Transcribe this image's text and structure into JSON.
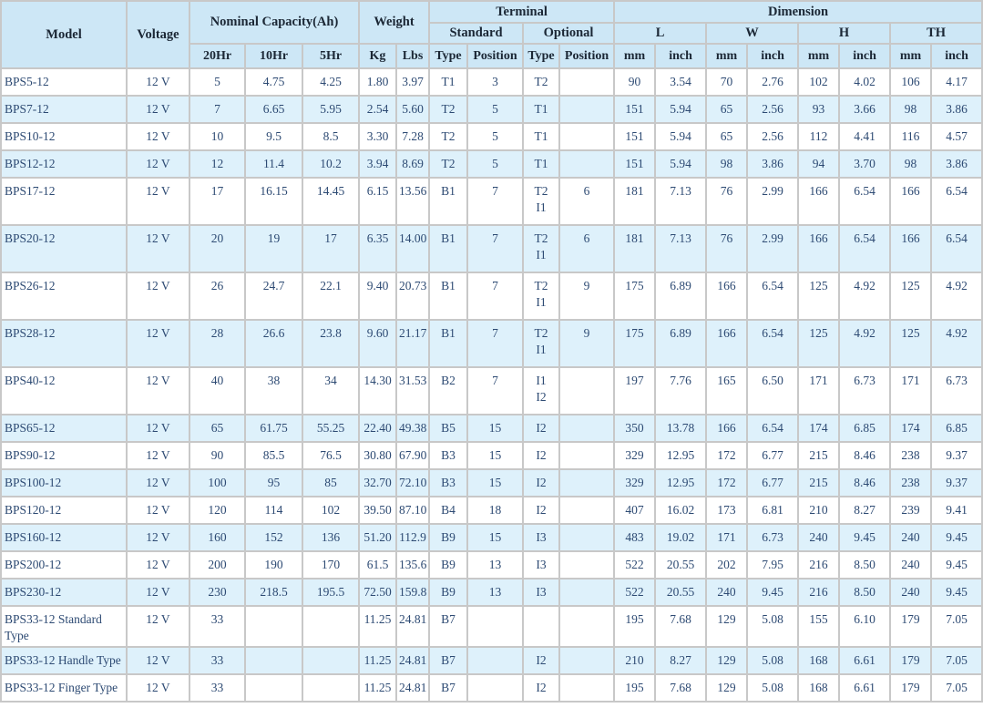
{
  "colors": {
    "header_bg": "#cde7f6",
    "stripe_bg": "#def1fb",
    "border": "#c8c8c8",
    "body_text": "#2d4a73",
    "header_text": "#1b2735"
  },
  "header": {
    "model": "Model",
    "voltage": "Voltage",
    "nominal_capacity": {
      "label": "Nominal Capacity(Ah)",
      "cols": [
        "20Hr",
        "10Hr",
        "5Hr"
      ]
    },
    "weight": {
      "label": "Weight",
      "cols": [
        "Kg",
        "Lbs"
      ]
    },
    "terminal": {
      "label": "Terminal",
      "standard": {
        "label": "Standard",
        "cols": [
          "Type",
          "Position"
        ]
      },
      "optional": {
        "label": "Optional",
        "cols": [
          "Type",
          "Position"
        ]
      }
    },
    "dimension": {
      "label": "Dimension",
      "groups": [
        {
          "label": "L"
        },
        {
          "label": "W"
        },
        {
          "label": "H"
        },
        {
          "label": "TH"
        }
      ],
      "unit_cols": [
        "mm",
        "inch"
      ]
    }
  },
  "rows": [
    {
      "model": "BPS5-12",
      "voltage": "12 V",
      "cap_20hr": "5",
      "cap_10hr": "4.75",
      "cap_5hr": "4.25",
      "kg": "1.80",
      "lbs": "3.97",
      "std_type": "T1",
      "std_position": "3",
      "opt_type": "T2",
      "opt_position": "",
      "l_mm": "90",
      "l_inch": "3.54",
      "w_mm": "70",
      "w_inch": "2.76",
      "h_mm": "102",
      "h_inch": "4.02",
      "th_mm": "106",
      "th_inch": "4.17"
    },
    {
      "model": "BPS7-12",
      "voltage": "12 V",
      "cap_20hr": "7",
      "cap_10hr": "6.65",
      "cap_5hr": "5.95",
      "kg": "2.54",
      "lbs": "5.60",
      "std_type": "T2",
      "std_position": "5",
      "opt_type": "T1",
      "opt_position": "",
      "l_mm": "151",
      "l_inch": "5.94",
      "w_mm": "65",
      "w_inch": "2.56",
      "h_mm": "93",
      "h_inch": "3.66",
      "th_mm": "98",
      "th_inch": "3.86"
    },
    {
      "model": "BPS10-12",
      "voltage": "12 V",
      "cap_20hr": "10",
      "cap_10hr": "9.5",
      "cap_5hr": "8.5",
      "kg": "3.30",
      "lbs": "7.28",
      "std_type": "T2",
      "std_position": "5",
      "opt_type": "T1",
      "opt_position": "",
      "l_mm": "151",
      "l_inch": "5.94",
      "w_mm": "65",
      "w_inch": "2.56",
      "h_mm": "112",
      "h_inch": "4.41",
      "th_mm": "116",
      "th_inch": "4.57"
    },
    {
      "model": "BPS12-12",
      "voltage": "12 V",
      "cap_20hr": "12",
      "cap_10hr": "11.4",
      "cap_5hr": "10.2",
      "kg": "3.94",
      "lbs": "8.69",
      "std_type": "T2",
      "std_position": "5",
      "opt_type": "T1",
      "opt_position": "",
      "l_mm": "151",
      "l_inch": "5.94",
      "w_mm": "98",
      "w_inch": "3.86",
      "h_mm": "94",
      "h_inch": "3.70",
      "th_mm": "98",
      "th_inch": "3.86"
    },
    {
      "model": "BPS17-12",
      "voltage": "12 V",
      "cap_20hr": "17",
      "cap_10hr": "16.15",
      "cap_5hr": "14.45",
      "kg": "6.15",
      "lbs": "13.56",
      "std_type": "B1",
      "std_position": "7",
      "opt_type": "T2\nI1",
      "opt_position": "6",
      "l_mm": "181",
      "l_inch": "7.13",
      "w_mm": "76",
      "w_inch": "2.99",
      "h_mm": "166",
      "h_inch": "6.54",
      "th_mm": "166",
      "th_inch": "6.54"
    },
    {
      "model": "BPS20-12",
      "voltage": "12 V",
      "cap_20hr": "20",
      "cap_10hr": "19",
      "cap_5hr": "17",
      "kg": "6.35",
      "lbs": "14.00",
      "std_type": "B1",
      "std_position": "7",
      "opt_type": "T2\nI1",
      "opt_position": "6",
      "l_mm": "181",
      "l_inch": "7.13",
      "w_mm": "76",
      "w_inch": "2.99",
      "h_mm": "166",
      "h_inch": "6.54",
      "th_mm": "166",
      "th_inch": "6.54"
    },
    {
      "model": "BPS26-12",
      "voltage": "12 V",
      "cap_20hr": "26",
      "cap_10hr": "24.7",
      "cap_5hr": "22.1",
      "kg": "9.40",
      "lbs": "20.73",
      "std_type": "B1",
      "std_position": "7",
      "opt_type": "T2\nI1",
      "opt_position": "9",
      "l_mm": "175",
      "l_inch": "6.89",
      "w_mm": "166",
      "w_inch": "6.54",
      "h_mm": "125",
      "h_inch": "4.92",
      "th_mm": "125",
      "th_inch": "4.92"
    },
    {
      "model": "BPS28-12",
      "voltage": "12 V",
      "cap_20hr": "28",
      "cap_10hr": "26.6",
      "cap_5hr": "23.8",
      "kg": "9.60",
      "lbs": "21.17",
      "std_type": "B1",
      "std_position": "7",
      "opt_type": "T2\nI1",
      "opt_position": "9",
      "l_mm": "175",
      "l_inch": "6.89",
      "w_mm": "166",
      "w_inch": "6.54",
      "h_mm": "125",
      "h_inch": "4.92",
      "th_mm": "125",
      "th_inch": "4.92"
    },
    {
      "model": "BPS40-12",
      "voltage": "12 V",
      "cap_20hr": "40",
      "cap_10hr": "38",
      "cap_5hr": "34",
      "kg": "14.30",
      "lbs": "31.53",
      "std_type": "B2",
      "std_position": "7",
      "opt_type": "I1\nI2",
      "opt_position": "",
      "l_mm": "197",
      "l_inch": "7.76",
      "w_mm": "165",
      "w_inch": "6.50",
      "h_mm": "171",
      "h_inch": "6.73",
      "th_mm": "171",
      "th_inch": "6.73"
    },
    {
      "model": "BPS65-12",
      "voltage": "12 V",
      "cap_20hr": "65",
      "cap_10hr": "61.75",
      "cap_5hr": "55.25",
      "kg": "22.40",
      "lbs": "49.38",
      "std_type": "B5",
      "std_position": "15",
      "opt_type": "I2",
      "opt_position": "",
      "l_mm": "350",
      "l_inch": "13.78",
      "w_mm": "166",
      "w_inch": "6.54",
      "h_mm": "174",
      "h_inch": "6.85",
      "th_mm": "174",
      "th_inch": "6.85"
    },
    {
      "model": "BPS90-12",
      "voltage": "12 V",
      "cap_20hr": "90",
      "cap_10hr": "85.5",
      "cap_5hr": "76.5",
      "kg": "30.80",
      "lbs": "67.90",
      "std_type": "B3",
      "std_position": "15",
      "opt_type": "I2",
      "opt_position": "",
      "l_mm": "329",
      "l_inch": "12.95",
      "w_mm": "172",
      "w_inch": "6.77",
      "h_mm": "215",
      "h_inch": "8.46",
      "th_mm": "238",
      "th_inch": "9.37"
    },
    {
      "model": "BPS100-12",
      "voltage": "12 V",
      "cap_20hr": "100",
      "cap_10hr": "95",
      "cap_5hr": "85",
      "kg": "32.70",
      "lbs": "72.10",
      "std_type": "B3",
      "std_position": "15",
      "opt_type": "I2",
      "opt_position": "",
      "l_mm": "329",
      "l_inch": "12.95",
      "w_mm": "172",
      "w_inch": "6.77",
      "h_mm": "215",
      "h_inch": "8.46",
      "th_mm": "238",
      "th_inch": "9.37"
    },
    {
      "model": "BPS120-12",
      "voltage": "12 V",
      "cap_20hr": "120",
      "cap_10hr": "114",
      "cap_5hr": "102",
      "kg": "39.50",
      "lbs": "87.10",
      "std_type": "B4",
      "std_position": "18",
      "opt_type": "I2",
      "opt_position": "",
      "l_mm": "407",
      "l_inch": "16.02",
      "w_mm": "173",
      "w_inch": "6.81",
      "h_mm": "210",
      "h_inch": "8.27",
      "th_mm": "239",
      "th_inch": "9.41"
    },
    {
      "model": "BPS160-12",
      "voltage": "12 V",
      "cap_20hr": "160",
      "cap_10hr": "152",
      "cap_5hr": "136",
      "kg": "51.20",
      "lbs": "112.9",
      "std_type": "B9",
      "std_position": "15",
      "opt_type": "I3",
      "opt_position": "",
      "l_mm": "483",
      "l_inch": "19.02",
      "w_mm": "171",
      "w_inch": "6.73",
      "h_mm": "240",
      "h_inch": "9.45",
      "th_mm": "240",
      "th_inch": "9.45"
    },
    {
      "model": "BPS200-12",
      "voltage": "12 V",
      "cap_20hr": "200",
      "cap_10hr": "190",
      "cap_5hr": "170",
      "kg": "61.5",
      "lbs": "135.6",
      "std_type": "B9",
      "std_position": "13",
      "opt_type": "I3",
      "opt_position": "",
      "l_mm": "522",
      "l_inch": "20.55",
      "w_mm": "202",
      "w_inch": "7.95",
      "h_mm": "216",
      "h_inch": "8.50",
      "th_mm": "240",
      "th_inch": "9.45"
    },
    {
      "model": "BPS230-12",
      "voltage": "12 V",
      "cap_20hr": "230",
      "cap_10hr": "218.5",
      "cap_5hr": "195.5",
      "kg": "72.50",
      "lbs": "159.8",
      "std_type": "B9",
      "std_position": "13",
      "opt_type": "I3",
      "opt_position": "",
      "l_mm": "522",
      "l_inch": "20.55",
      "w_mm": "240",
      "w_inch": "9.45",
      "h_mm": "216",
      "h_inch": "8.50",
      "th_mm": "240",
      "th_inch": "9.45"
    },
    {
      "model": "BPS33-12 Standard Type",
      "voltage": "12 V",
      "cap_20hr": "33",
      "cap_10hr": "",
      "cap_5hr": "",
      "kg": "11.25",
      "lbs": "24.81",
      "std_type": "B7",
      "std_position": "",
      "opt_type": "",
      "opt_position": "",
      "l_mm": "195",
      "l_inch": "7.68",
      "w_mm": "129",
      "w_inch": "5.08",
      "h_mm": "155",
      "h_inch": "6.10",
      "th_mm": "179",
      "th_inch": "7.05"
    },
    {
      "model": "BPS33-12 Handle Type",
      "voltage": "12 V",
      "cap_20hr": "33",
      "cap_10hr": "",
      "cap_5hr": "",
      "kg": "11.25",
      "lbs": "24.81",
      "std_type": "B7",
      "std_position": "",
      "opt_type": "I2",
      "opt_position": "",
      "l_mm": "210",
      "l_inch": "8.27",
      "w_mm": "129",
      "w_inch": "5.08",
      "h_mm": "168",
      "h_inch": "6.61",
      "th_mm": "179",
      "th_inch": "7.05"
    },
    {
      "model": "BPS33-12 Finger Type",
      "voltage": "12 V",
      "cap_20hr": "33",
      "cap_10hr": "",
      "cap_5hr": "",
      "kg": "11.25",
      "lbs": "24.81",
      "std_type": "B7",
      "std_position": "",
      "opt_type": "I2",
      "opt_position": "",
      "l_mm": "195",
      "l_inch": "7.68",
      "w_mm": "129",
      "w_inch": "5.08",
      "h_mm": "168",
      "h_inch": "6.61",
      "th_mm": "179",
      "th_inch": "7.05"
    }
  ]
}
